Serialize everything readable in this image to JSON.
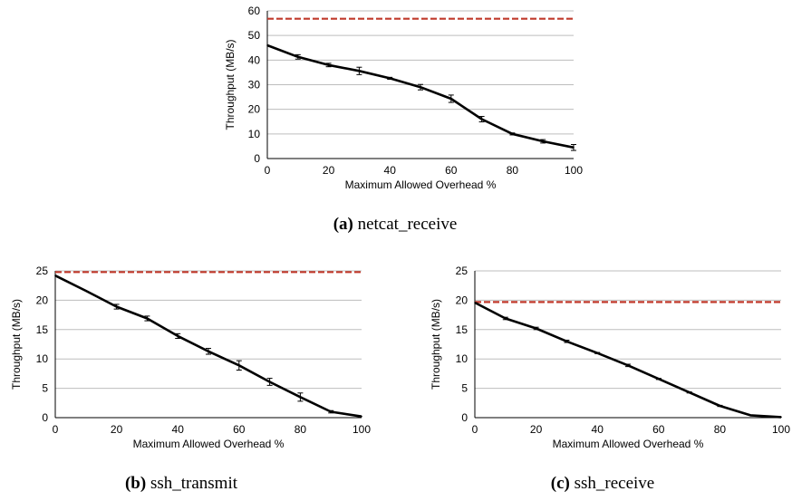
{
  "chart_data": [
    {
      "type": "line",
      "caption_letter": "(a)",
      "caption_name": "netcat_receive",
      "xlabel": "Maximum Allowed Overhead %",
      "ylabel": "Throughput (MB/s)",
      "xlim": [
        0,
        100
      ],
      "ylim": [
        0,
        60
      ],
      "xticks": [
        0,
        20,
        40,
        60,
        80,
        100
      ],
      "yticks": [
        0,
        10,
        20,
        30,
        40,
        50,
        60
      ],
      "grid": true,
      "x": [
        0,
        10,
        20,
        30,
        40,
        50,
        60,
        70,
        80,
        90,
        100
      ],
      "series": [
        {
          "values": [
            46,
            41.3,
            38,
            35.6,
            32.6,
            29,
            24.3,
            16,
            10,
            7,
            4.5
          ],
          "errors": [
            0,
            0.9,
            0.7,
            1.5,
            0.4,
            1.1,
            1.5,
            1.1,
            0.4,
            0.7,
            1.2
          ]
        }
      ],
      "reference_line": 56.8,
      "reference_color": "#c0392b"
    },
    {
      "type": "line",
      "caption_letter": "(b)",
      "caption_name": "ssh_transmit",
      "xlabel": "Maximum Allowed Overhead %",
      "ylabel": "Throughput (MB/s)",
      "xlim": [
        0,
        100
      ],
      "ylim": [
        0,
        25
      ],
      "xticks": [
        0,
        20,
        40,
        60,
        80,
        100
      ],
      "yticks": [
        0,
        5,
        10,
        15,
        20,
        25
      ],
      "grid": true,
      "x": [
        0,
        10,
        20,
        30,
        40,
        50,
        60,
        70,
        80,
        90,
        100
      ],
      "series": [
        {
          "values": [
            24.2,
            21.6,
            18.9,
            16.9,
            13.9,
            11.3,
            8.9,
            6.1,
            3.5,
            1.0,
            0.2
          ],
          "errors": [
            0,
            0,
            0.4,
            0.4,
            0.4,
            0.5,
            0.8,
            0.6,
            0.7,
            0.2,
            0
          ]
        }
      ],
      "reference_line": 24.8,
      "reference_color": "#c0392b"
    },
    {
      "type": "line",
      "caption_letter": "(c)",
      "caption_name": "ssh_receive",
      "xlabel": "Maximum Allowed Overhead %",
      "ylabel": "Throughput (MB/s)",
      "xlim": [
        0,
        100
      ],
      "ylim": [
        0,
        25
      ],
      "xticks": [
        0,
        20,
        40,
        60,
        80,
        100
      ],
      "yticks": [
        0,
        5,
        10,
        15,
        20,
        25
      ],
      "grid": true,
      "x": [
        0,
        10,
        20,
        30,
        40,
        50,
        60,
        70,
        80,
        90,
        100
      ],
      "series": [
        {
          "values": [
            19.6,
            16.9,
            15.2,
            13.0,
            11.0,
            8.9,
            6.6,
            4.3,
            2.0,
            0.4,
            0.1
          ],
          "errors": [
            0,
            0.2,
            0.2,
            0.2,
            0.1,
            0.2,
            0.1,
            0.1,
            0.1,
            0,
            0
          ]
        }
      ],
      "reference_line": 19.7,
      "reference_color": "#c0392b"
    }
  ]
}
